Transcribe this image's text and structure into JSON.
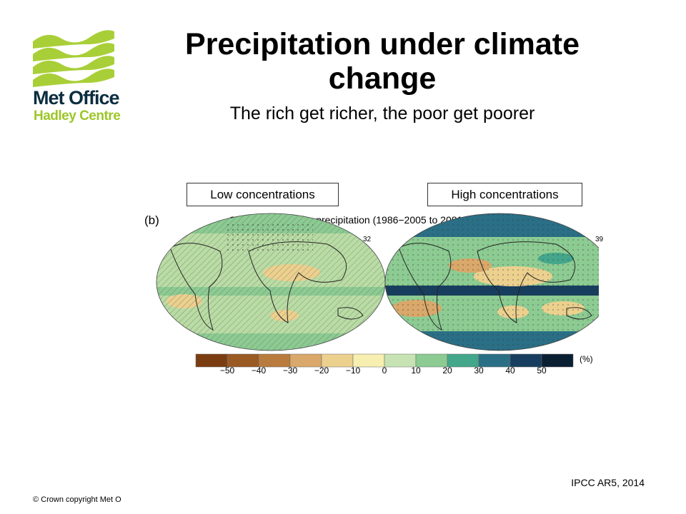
{
  "logo": {
    "name": "Met Office",
    "subname": "Hadley Centre"
  },
  "slide": {
    "title": "Precipitation under climate change",
    "subtitle": "The rich get richer, the poor get poorer"
  },
  "labels": {
    "low": "Low concentrations",
    "high": "High concentrations"
  },
  "figure": {
    "panel_label": "(b)",
    "title": "Change in average precipitation (1986−2005 to 2081−2100)",
    "model_counts": {
      "low": "32",
      "high": "39"
    },
    "colorbar": {
      "unit": "(%)",
      "ticks": [
        "−50",
        "−40",
        "−30",
        "−20",
        "−10",
        "0",
        "10",
        "20",
        "30",
        "40",
        "50"
      ],
      "colors": [
        "#7a3d12",
        "#9a5a23",
        "#b97c3e",
        "#d9a86a",
        "#ecd08e",
        "#f6efb0",
        "#c7e3b3",
        "#8ccb92",
        "#44a68a",
        "#2a6f86",
        "#173e5e",
        "#0b1f33"
      ]
    }
  },
  "footer": {
    "source": "IPCC AR5, 2014",
    "copyright": "© Crown  copyright   Met O"
  }
}
